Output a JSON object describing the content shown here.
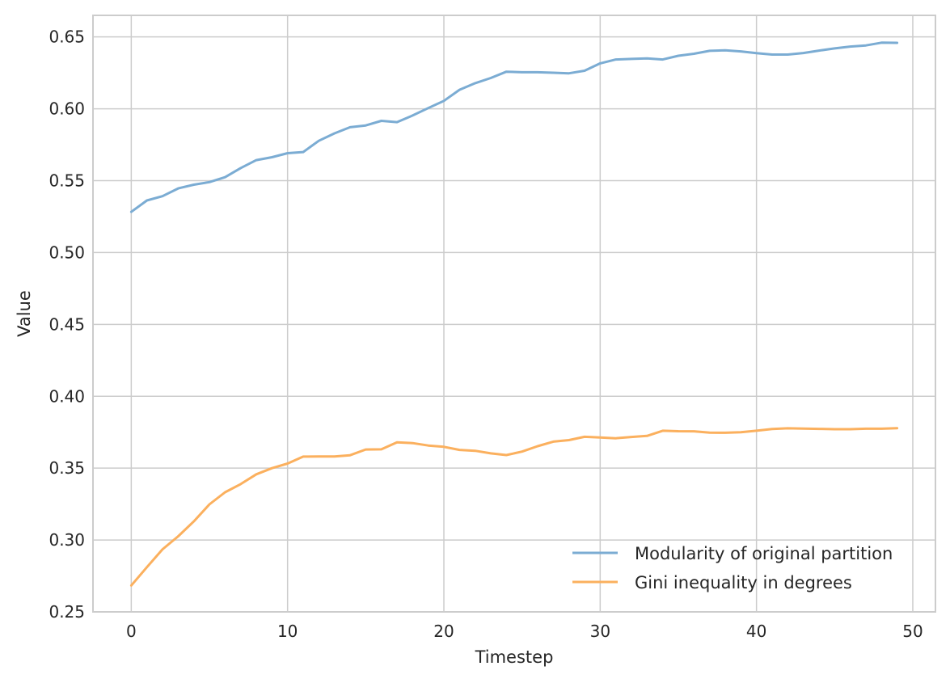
{
  "chart_data": {
    "type": "line",
    "xlabel": "Timestep",
    "ylabel": "Value",
    "xlim": [
      -2.45,
      51.45
    ],
    "ylim": [
      0.25,
      0.665
    ],
    "xticks": [
      0,
      10,
      20,
      30,
      40,
      50
    ],
    "yticks": [
      0.25,
      0.3,
      0.35,
      0.4,
      0.45,
      0.5,
      0.55,
      0.6,
      0.65
    ],
    "grid": true,
    "legend_position": "lower-right",
    "x": [
      0,
      1,
      2,
      3,
      4,
      5,
      6,
      7,
      8,
      9,
      10,
      11,
      12,
      13,
      14,
      15,
      16,
      17,
      18,
      19,
      20,
      21,
      22,
      23,
      24,
      25,
      26,
      27,
      28,
      29,
      30,
      31,
      32,
      33,
      34,
      35,
      36,
      37,
      38,
      39,
      40,
      41,
      42,
      43,
      44,
      45,
      46,
      47,
      48,
      49
    ],
    "series": [
      {
        "name": "Modularity of original partition",
        "color": "#7bacd3",
        "values": [
          0.5283,
          0.5362,
          0.5392,
          0.5446,
          0.5472,
          0.549,
          0.5524,
          0.5588,
          0.5643,
          0.5663,
          0.5691,
          0.5699,
          0.5777,
          0.5829,
          0.5872,
          0.5884,
          0.5916,
          0.5907,
          0.5953,
          0.6005,
          0.6055,
          0.6132,
          0.6178,
          0.6214,
          0.6258,
          0.6254,
          0.6254,
          0.6251,
          0.6247,
          0.6265,
          0.6316,
          0.6343,
          0.6347,
          0.6351,
          0.6343,
          0.6369,
          0.6383,
          0.6403,
          0.6407,
          0.6399,
          0.6387,
          0.6377,
          0.6377,
          0.6388,
          0.6405,
          0.642,
          0.6433,
          0.6441,
          0.646,
          0.6459
        ]
      },
      {
        "name": "Gini inequality in degrees",
        "color": "#fbb05e",
        "values": [
          0.2684,
          0.2811,
          0.2935,
          0.3026,
          0.3129,
          0.3248,
          0.3332,
          0.3389,
          0.3457,
          0.35,
          0.3532,
          0.358,
          0.3581,
          0.3581,
          0.359,
          0.363,
          0.3631,
          0.368,
          0.3674,
          0.3657,
          0.3648,
          0.3627,
          0.3621,
          0.3603,
          0.3591,
          0.3615,
          0.3653,
          0.3684,
          0.3695,
          0.3718,
          0.3713,
          0.3708,
          0.3717,
          0.3724,
          0.376,
          0.3757,
          0.3756,
          0.3747,
          0.3746,
          0.375,
          0.376,
          0.3772,
          0.3777,
          0.3775,
          0.3773,
          0.3771,
          0.3771,
          0.3774,
          0.3774,
          0.3778
        ]
      }
    ]
  }
}
